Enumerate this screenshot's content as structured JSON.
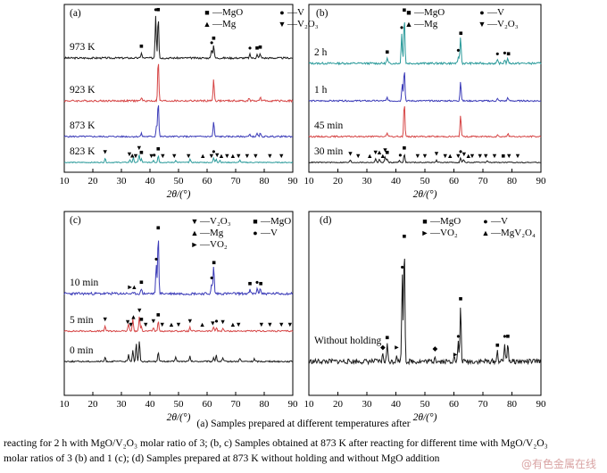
{
  "figure": {
    "caption_line1": "(a) Samples prepared at different temperatures after",
    "caption_line2": "reacting for 2 h with MgO/V₂O₃ molar ratio of 3; (b, c) Samples obtained at 873 K after reacting for different time with MgO/V₂O₃",
    "caption_line3": "molar ratios of 3 (b) and 1 (c); (d) Samples prepared at 873 K without holding and without MgO addition",
    "watermark": "@有色金属在线"
  },
  "colors": {
    "black": "#1a1a1a",
    "red": "#d64545",
    "blue": "#3b3bb8",
    "teal": "#2a9a9a"
  },
  "chart_data": [
    {
      "type": "line",
      "panel": "(a)",
      "xlabel": "2θ/(°)",
      "xlim": [
        10,
        90
      ],
      "xticks": [
        10,
        20,
        30,
        40,
        50,
        60,
        70,
        80,
        90
      ],
      "legend": [
        {
          "symbol": "■",
          "label": "—MgO"
        },
        {
          "symbol": "●",
          "label": "—V"
        },
        {
          "symbol": "▲",
          "label": "—Mg"
        },
        {
          "symbol": "▼",
          "label": "—V₂O₃"
        }
      ],
      "series": [
        {
          "name": "973 K",
          "color": "#1a1a1a",
          "peaks": [
            [
              37,
              0.12
            ],
            [
              42,
              0.95
            ],
            [
              42.9,
              0.95
            ],
            [
              62.3,
              0.3
            ],
            [
              61.6,
              0.2
            ],
            [
              75,
              0.08
            ],
            [
              77.5,
              0.08
            ],
            [
              78.6,
              0.1
            ]
          ],
          "markers": [
            [
              37,
              "■"
            ],
            [
              42,
              "●"
            ],
            [
              42.9,
              "■"
            ],
            [
              61.6,
              "●"
            ],
            [
              62.3,
              "■"
            ],
            [
              75,
              "●"
            ],
            [
              77.5,
              "■"
            ],
            [
              78.6,
              "■"
            ]
          ]
        },
        {
          "name": "923 K",
          "color": "#d64545",
          "peaks": [
            [
              37,
              0.08
            ],
            [
              42.9,
              0.95
            ],
            [
              62.3,
              0.5
            ],
            [
              74.7,
              0.06
            ],
            [
              78.6,
              0.08
            ]
          ],
          "markers": []
        },
        {
          "name": "873 K",
          "color": "#3b3bb8",
          "peaks": [
            [
              37,
              0.08
            ],
            [
              42.3,
              0.3
            ],
            [
              42.9,
              0.95
            ],
            [
              62.3,
              0.4
            ],
            [
              75,
              0.06
            ],
            [
              77.5,
              0.08
            ],
            [
              78.6,
              0.08
            ]
          ],
          "markers": []
        },
        {
          "name": "823 K",
          "color": "#2a9a9a",
          "peaks": [
            [
              24.3,
              0.18
            ],
            [
              33,
              0.12
            ],
            [
              34.2,
              0.2
            ],
            [
              36.2,
              0.35
            ],
            [
              37,
              0.15
            ],
            [
              41.2,
              0.1
            ],
            [
              42.9,
              0.3
            ],
            [
              49,
              0.1
            ],
            [
              54,
              0.14
            ],
            [
              62.3,
              0.2
            ],
            [
              63.2,
              0.15
            ],
            [
              64.5,
              0.1
            ],
            [
              71.5,
              0.1
            ]
          ],
          "markers": [
            [
              24.3,
              "▼"
            ],
            [
              32.8,
              "▼"
            ],
            [
              33.8,
              "▲"
            ],
            [
              35,
              "▼"
            ],
            [
              36.2,
              "▼"
            ],
            [
              37,
              "■"
            ],
            [
              40.5,
              "▼"
            ],
            [
              41.5,
              "●"
            ],
            [
              42.9,
              "■"
            ],
            [
              44.5,
              "▼"
            ],
            [
              48.5,
              "▼"
            ],
            [
              53.5,
              "▼"
            ],
            [
              58.5,
              "▲"
            ],
            [
              61.5,
              "▼"
            ],
            [
              62.3,
              "●"
            ],
            [
              63.5,
              "▼"
            ],
            [
              65,
              "▲"
            ],
            [
              67,
              "▼"
            ],
            [
              69,
              "▲"
            ],
            [
              71,
              "▼"
            ],
            [
              74,
              "▼"
            ],
            [
              77,
              "▼"
            ],
            [
              82,
              "▼"
            ],
            [
              86,
              "▼"
            ]
          ]
        }
      ]
    },
    {
      "type": "line",
      "panel": "(b)",
      "xlabel": "2θ/(°)",
      "xlim": [
        10,
        90
      ],
      "xticks": [
        10,
        20,
        30,
        40,
        50,
        60,
        70,
        80,
        90
      ],
      "legend": [
        {
          "symbol": "■",
          "label": "—MgO"
        },
        {
          "symbol": "●",
          "label": "—V"
        },
        {
          "symbol": "▲",
          "label": "—Mg"
        },
        {
          "symbol": "▼",
          "label": "—V₂O₃"
        }
      ],
      "series": [
        {
          "name": "2 h",
          "color": "#2a9a9a",
          "peaks": [
            [
              37,
              0.1
            ],
            [
              42,
              0.6
            ],
            [
              42.9,
              0.95
            ],
            [
              62.3,
              0.55
            ],
            [
              61.6,
              0.15
            ],
            [
              75,
              0.06
            ],
            [
              77.5,
              0.08
            ],
            [
              78.6,
              0.1
            ]
          ],
          "markers": [
            [
              37,
              "■"
            ],
            [
              42,
              "●"
            ],
            [
              42.9,
              "■"
            ],
            [
              61.5,
              "●"
            ],
            [
              62.4,
              "■"
            ],
            [
              75,
              "●"
            ],
            [
              77.5,
              "●"
            ],
            [
              78.8,
              "■"
            ]
          ]
        },
        {
          "name": "1 h",
          "color": "#3b3bb8",
          "peaks": [
            [
              37,
              0.1
            ],
            [
              42.2,
              0.5
            ],
            [
              42.9,
              0.9
            ],
            [
              62.3,
              0.55
            ],
            [
              75,
              0.06
            ],
            [
              78.6,
              0.1
            ]
          ],
          "markers": []
        },
        {
          "name": "45 min",
          "color": "#d64545",
          "peaks": [
            [
              37,
              0.1
            ],
            [
              42.9,
              0.95
            ],
            [
              62.3,
              0.6
            ],
            [
              75,
              0.05
            ],
            [
              78.6,
              0.08
            ]
          ],
          "markers": []
        },
        {
          "name": "30 min",
          "color": "#1a1a1a",
          "peaks": [
            [
              24.3,
              0.1
            ],
            [
              33,
              0.15
            ],
            [
              34.3,
              0.15
            ],
            [
              36.3,
              0.25
            ],
            [
              37,
              0.15
            ],
            [
              41.2,
              0.1
            ],
            [
              42.9,
              0.35
            ],
            [
              54,
              0.1
            ],
            [
              62.3,
              0.2
            ],
            [
              63.3,
              0.12
            ],
            [
              71.5,
              0.08
            ]
          ],
          "markers": [
            [
              24.3,
              "▼"
            ],
            [
              27,
              "▼"
            ],
            [
              31,
              "▲"
            ],
            [
              33,
              "▼"
            ],
            [
              34.3,
              "▲"
            ],
            [
              35.5,
              "▲"
            ],
            [
              36.3,
              "▼"
            ],
            [
              37,
              "■"
            ],
            [
              41.5,
              "●"
            ],
            [
              42.9,
              "■"
            ],
            [
              47.5,
              "▼"
            ],
            [
              50,
              "▼"
            ],
            [
              54,
              "▼"
            ],
            [
              57,
              "▼"
            ],
            [
              58.7,
              "▲"
            ],
            [
              61.5,
              "▼"
            ],
            [
              62.3,
              "●"
            ],
            [
              63.5,
              "▼"
            ],
            [
              65,
              "▲"
            ],
            [
              66.3,
              "▼"
            ],
            [
              69,
              "▼"
            ],
            [
              71,
              "▼"
            ],
            [
              74,
              "▼"
            ],
            [
              77,
              "■"
            ],
            [
              79,
              "▼"
            ],
            [
              82,
              "▼"
            ]
          ]
        }
      ]
    },
    {
      "type": "line",
      "panel": "(c)",
      "xlabel": "2θ/(°)",
      "xlim": [
        10,
        90
      ],
      "xticks": [
        10,
        20,
        30,
        40,
        50,
        60,
        70,
        80,
        90
      ],
      "legend": [
        {
          "symbol": "▼",
          "label": "—V₂O₃"
        },
        {
          "symbol": "■",
          "label": "—MgO"
        },
        {
          "symbol": "▲",
          "label": "—Mg"
        },
        {
          "symbol": "●",
          "label": "—V"
        },
        {
          "symbol": "►",
          "label": "—VO₂"
        }
      ],
      "series": [
        {
          "name": "10 min",
          "color": "#3b3bb8",
          "peaks": [
            [
              37,
              0.08
            ],
            [
              42.2,
              0.45
            ],
            [
              42.9,
              0.95
            ],
            [
              62.3,
              0.45
            ],
            [
              61.6,
              0.15
            ],
            [
              75,
              0.06
            ],
            [
              77.5,
              0.08
            ],
            [
              78.6,
              0.1
            ]
          ],
          "markers": [
            [
              33,
              "►"
            ],
            [
              34.5,
              "▲"
            ],
            [
              37,
              "■"
            ],
            [
              42.2,
              "●"
            ],
            [
              42.9,
              "■"
            ],
            [
              61.6,
              "●"
            ],
            [
              62.4,
              "■"
            ],
            [
              75,
              "■"
            ],
            [
              77.5,
              "●"
            ],
            [
              78.8,
              "■"
            ]
          ]
        },
        {
          "name": "5 min",
          "color": "#d64545",
          "peaks": [
            [
              24.3,
              0.15
            ],
            [
              32.5,
              0.22
            ],
            [
              34,
              0.35
            ],
            [
              36.3,
              0.4
            ],
            [
              37,
              0.15
            ],
            [
              41.2,
              0.1
            ],
            [
              42.9,
              0.28
            ],
            [
              54,
              0.1
            ],
            [
              62.3,
              0.12
            ],
            [
              63.3,
              0.1
            ],
            [
              65.5,
              0.08
            ]
          ],
          "markers": [
            [
              24.3,
              "▼"
            ],
            [
              32.2,
              "▼"
            ],
            [
              33.3,
              "▼"
            ],
            [
              34.2,
              "▲"
            ],
            [
              36.3,
              "▼"
            ],
            [
              37,
              "■"
            ],
            [
              38.5,
              "▼"
            ],
            [
              41.2,
              "▼"
            ],
            [
              42.9,
              "■"
            ],
            [
              44.3,
              "▼"
            ],
            [
              47.5,
              "▲"
            ],
            [
              50,
              "▼"
            ],
            [
              54,
              "▼"
            ],
            [
              58.3,
              "▲"
            ],
            [
              62,
              "▼"
            ],
            [
              63.3,
              "●"
            ],
            [
              65.5,
              "▼"
            ],
            [
              69,
              "▲"
            ],
            [
              71,
              "▼"
            ],
            [
              79,
              "▼"
            ],
            [
              82,
              "▼"
            ],
            [
              86,
              "▼"
            ],
            [
              89,
              "▼"
            ]
          ]
        },
        {
          "name": "0 min",
          "color": "#1a1a1a",
          "peaks": [
            [
              24.3,
              0.12
            ],
            [
              32.5,
              0.2
            ],
            [
              34,
              0.35
            ],
            [
              35.2,
              0.55
            ],
            [
              36.3,
              0.6
            ],
            [
              42.9,
              0.3
            ],
            [
              49,
              0.15
            ],
            [
              54,
              0.15
            ],
            [
              62.3,
              0.12
            ],
            [
              63.2,
              0.18
            ],
            [
              65.5,
              0.1
            ],
            [
              71.5,
              0.1
            ],
            [
              76.5,
              0.08
            ]
          ],
          "markers": []
        }
      ]
    },
    {
      "type": "line",
      "panel": "(d)",
      "xlabel": "2θ/(°)",
      "xlim": [
        10,
        90
      ],
      "xticks": [
        10,
        20,
        30,
        40,
        50,
        60,
        70,
        80,
        90
      ],
      "legend": [
        {
          "symbol": "■",
          "label": "—MgO"
        },
        {
          "symbol": "●",
          "label": "—V"
        },
        {
          "symbol": "►",
          "label": "—VO₂"
        },
        {
          "symbol": "▲",
          "label": "—MgV₂O₄"
        }
      ],
      "series": [
        {
          "name": "Without holding",
          "color": "#1a1a1a",
          "peaks": [
            [
              35.5,
              0.06
            ],
            [
              37,
              0.14
            ],
            [
              40.3,
              0.06
            ],
            [
              42.2,
              0.7
            ],
            [
              42.9,
              0.95
            ],
            [
              53.5,
              0.05
            ],
            [
              60,
              0.05
            ],
            [
              61.5,
              0.15
            ],
            [
              62.3,
              0.45
            ],
            [
              75,
              0.08
            ],
            [
              77.5,
              0.15
            ],
            [
              78.6,
              0.15
            ]
          ],
          "markers": [
            [
              35.5,
              "◆"
            ],
            [
              37,
              "■"
            ],
            [
              40.3,
              "►"
            ],
            [
              42.2,
              "●"
            ],
            [
              42.9,
              "■"
            ],
            [
              53.5,
              "◆"
            ],
            [
              60.5,
              "►"
            ],
            [
              61.5,
              "●"
            ],
            [
              62.3,
              "■"
            ],
            [
              75,
              "■"
            ],
            [
              77.5,
              "●"
            ],
            [
              78.6,
              "■"
            ]
          ]
        }
      ]
    }
  ]
}
